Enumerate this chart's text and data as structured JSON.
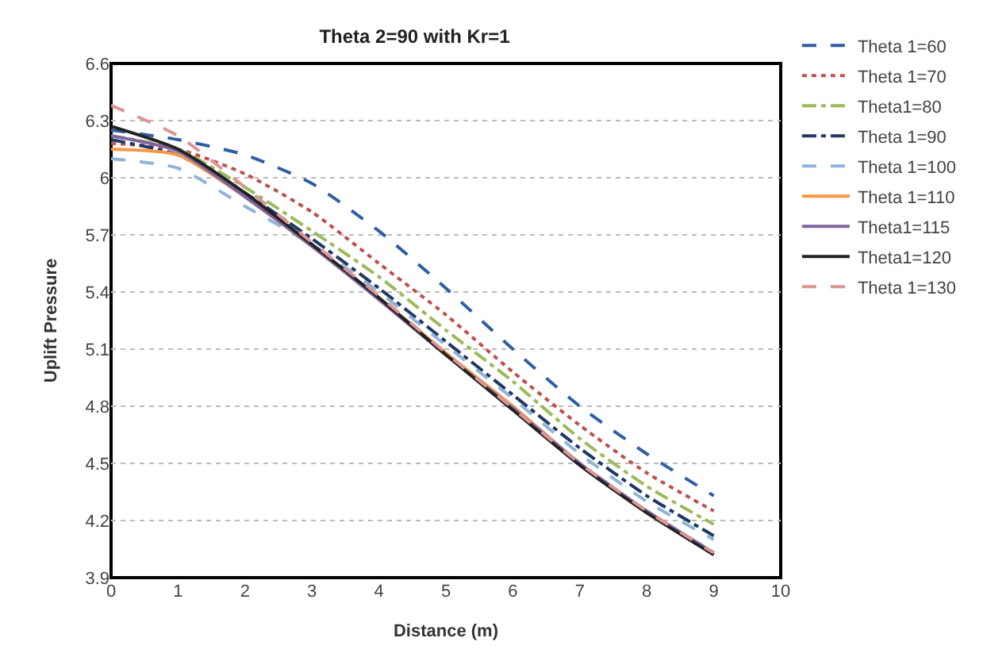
{
  "chart_data": {
    "type": "line",
    "title": "Theta 2=90 with Kr=1",
    "xlabel": "Distance (m)",
    "ylabel": "Uplift Pressure",
    "x": [
      0,
      1,
      2,
      3,
      4,
      5,
      6,
      7,
      8,
      9
    ],
    "xlim": [
      0,
      10
    ],
    "xticks": [
      0,
      1,
      2,
      3,
      4,
      5,
      6,
      7,
      8,
      9,
      10
    ],
    "ylim": [
      3.9,
      6.6
    ],
    "yticks": [
      3.9,
      4.2,
      4.5,
      4.8,
      5.1,
      5.4,
      5.7,
      6,
      6.3,
      6.6
    ],
    "grid": "y",
    "legend": "right",
    "marker": "none",
    "series": [
      {
        "name": "Theta 1=60",
        "color": "#2e5fa3",
        "line_style": "dashed",
        "values": [
          6.25,
          6.2,
          6.12,
          5.97,
          5.72,
          5.42,
          5.1,
          4.8,
          4.55,
          4.33
        ]
      },
      {
        "name": "Theta 1=70",
        "color": "#c0504d",
        "line_style": "dotted",
        "values": [
          6.18,
          6.15,
          6.02,
          5.82,
          5.55,
          5.28,
          4.98,
          4.7,
          4.45,
          4.25
        ]
      },
      {
        "name": "Theta1=80",
        "color": "#9bbb59",
        "line_style": "dashdot",
        "values": [
          6.22,
          6.15,
          5.95,
          5.72,
          5.48,
          5.2,
          4.93,
          4.63,
          4.38,
          4.18
        ]
      },
      {
        "name": "Theta 1=90",
        "color": "#1f3864",
        "line_style": "dashdot",
        "values": [
          6.2,
          6.12,
          5.92,
          5.68,
          5.42,
          5.14,
          4.86,
          4.58,
          4.33,
          4.12
        ]
      },
      {
        "name": "Theta 1=100",
        "color": "#8fb4d9",
        "line_style": "dashed",
        "values": [
          6.1,
          6.05,
          5.85,
          5.65,
          5.4,
          5.12,
          4.84,
          4.55,
          4.3,
          4.1
        ]
      },
      {
        "name": "Theta 1=110",
        "color": "#f79646",
        "line_style": "solid",
        "values": [
          6.15,
          6.12,
          5.9,
          5.64,
          5.37,
          5.08,
          4.8,
          4.5,
          4.25,
          4.03
        ]
      },
      {
        "name": "Theta1=115",
        "color": "#8064a2",
        "line_style": "solid",
        "values": [
          6.22,
          6.14,
          5.9,
          5.64,
          5.36,
          5.07,
          4.79,
          4.5,
          4.25,
          4.03
        ]
      },
      {
        "name": "Theta1=120",
        "color": "#222222",
        "line_style": "solid",
        "values": [
          6.27,
          6.15,
          5.92,
          5.65,
          5.37,
          5.07,
          4.78,
          4.49,
          4.24,
          4.02
        ]
      },
      {
        "name": "Theta 1=130",
        "color": "#d99694",
        "line_style": "dashed",
        "values": [
          6.38,
          6.22,
          5.95,
          5.66,
          5.38,
          5.08,
          4.79,
          4.5,
          4.25,
          4.03
        ]
      }
    ]
  }
}
